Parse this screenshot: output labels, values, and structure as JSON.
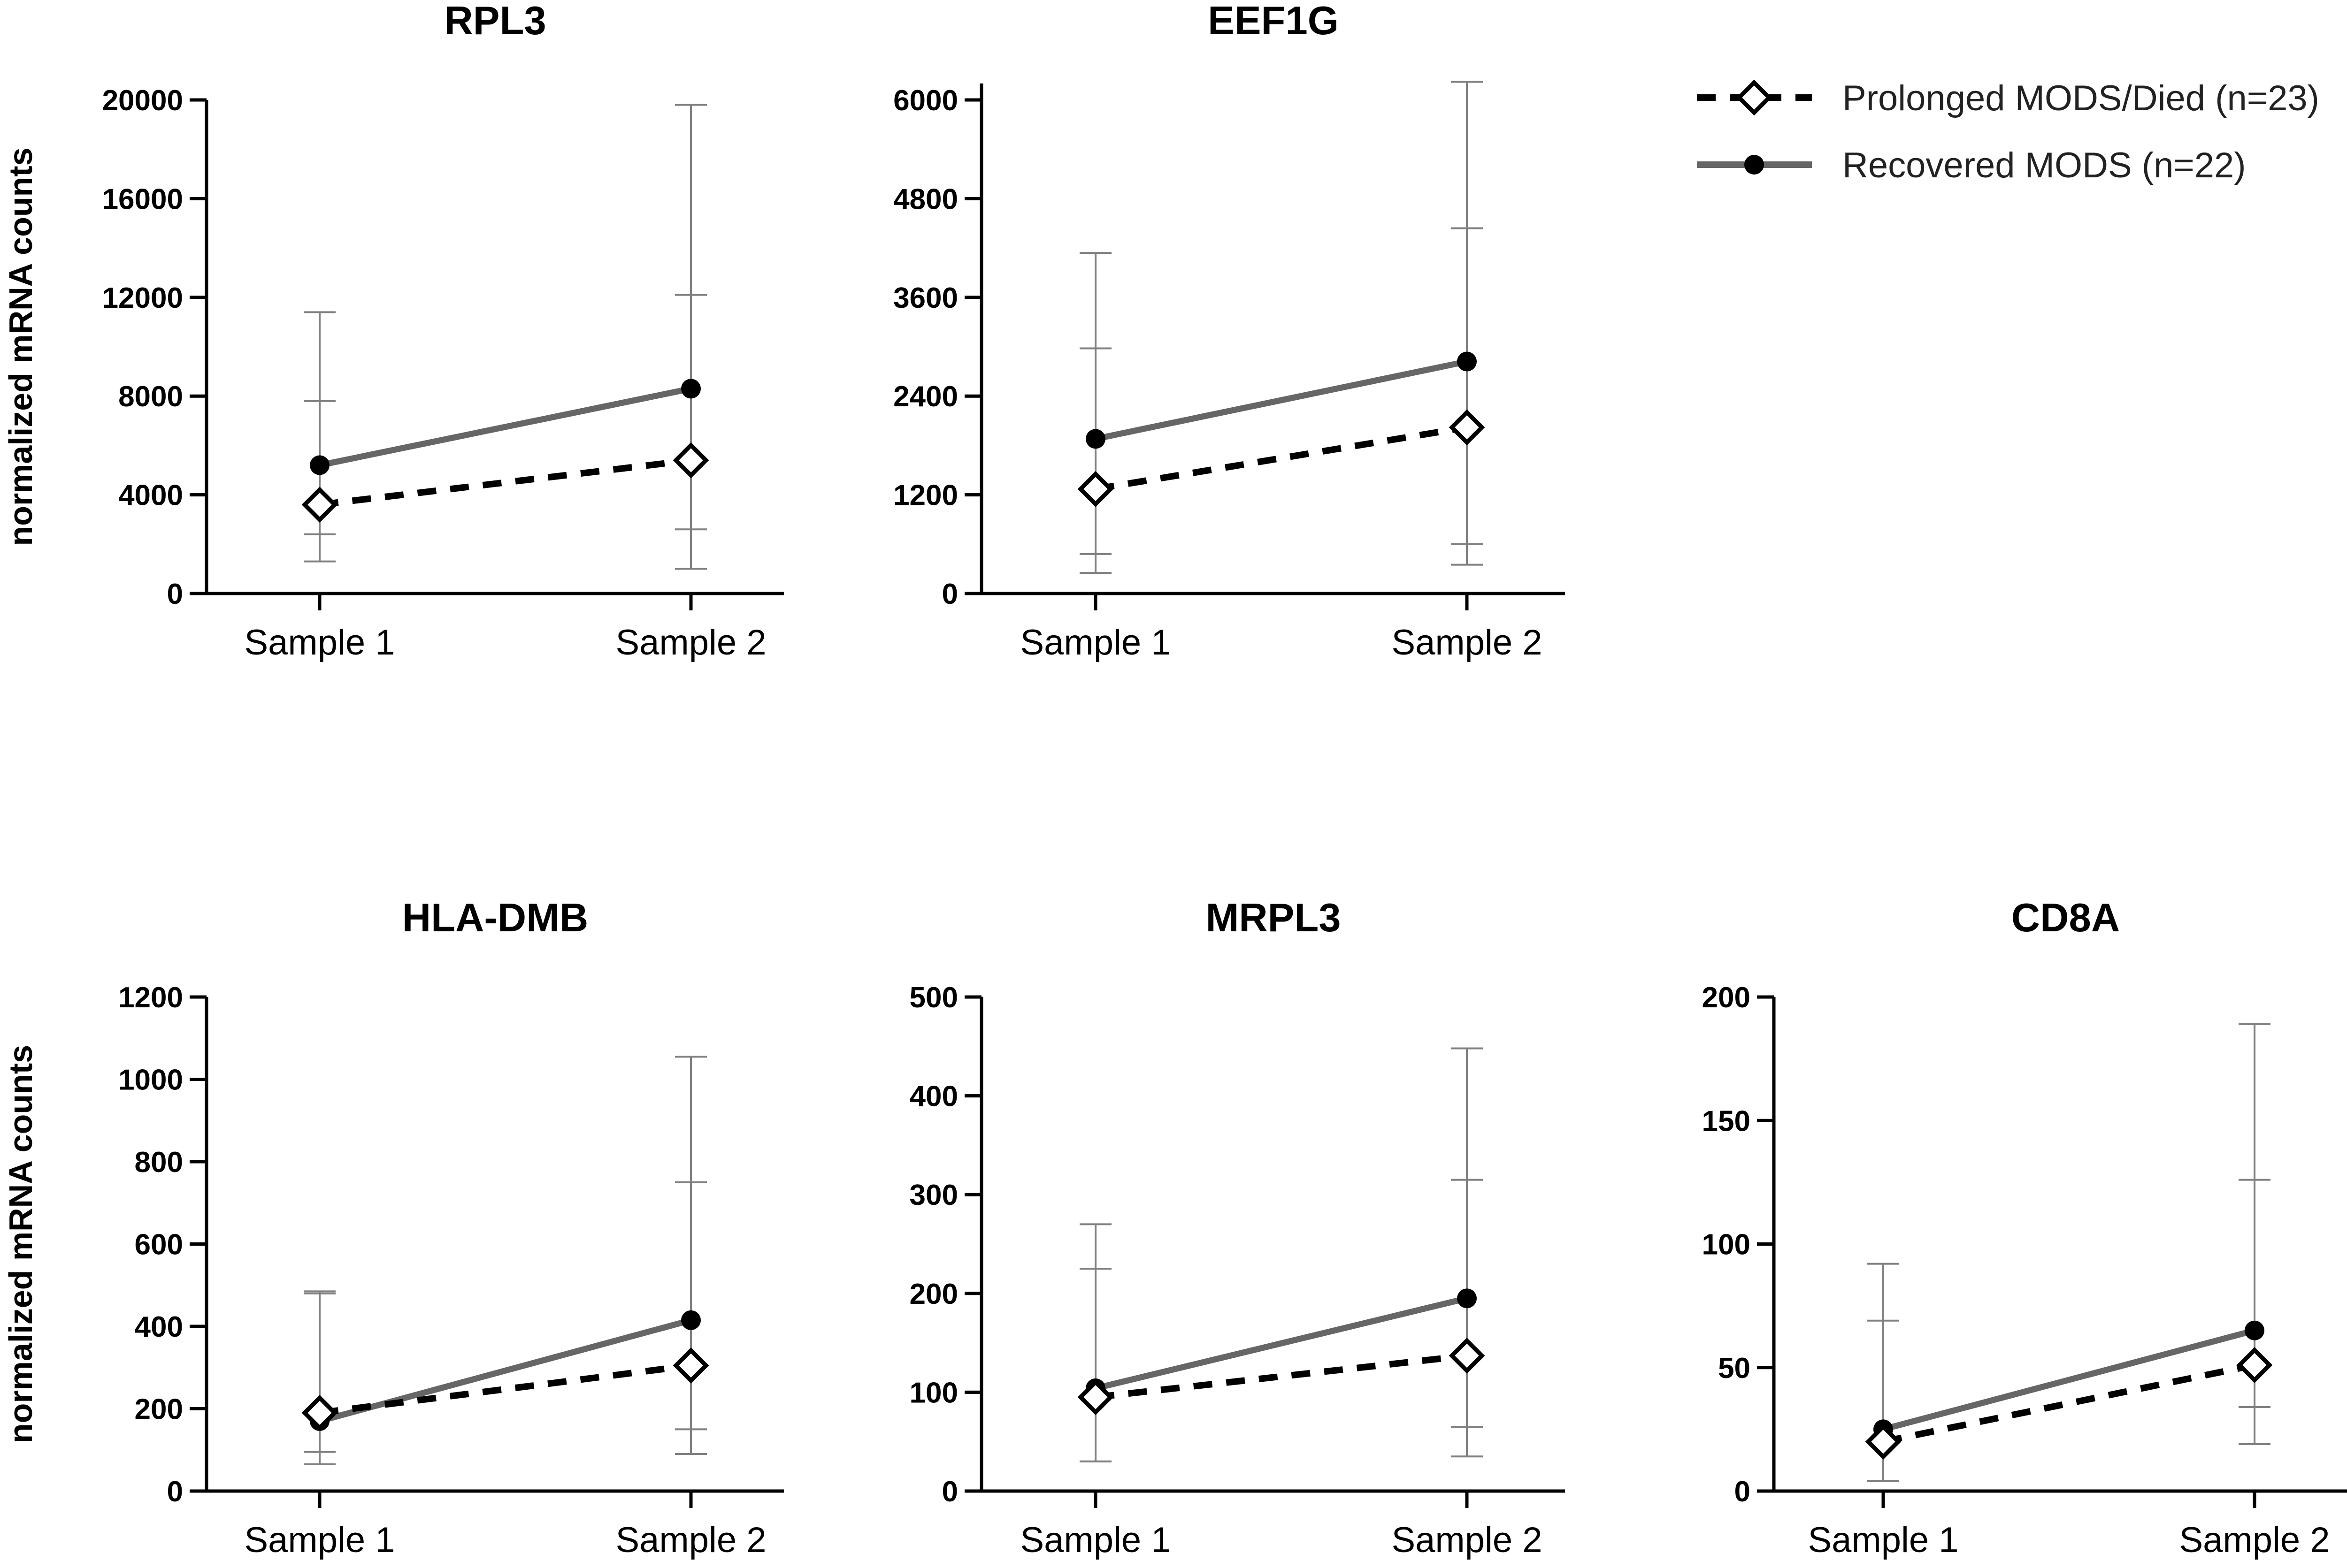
{
  "legend": {
    "items": [
      {
        "label": "Prolonged MODS/Died (n=23)",
        "marker": "diamond-open",
        "line": "dashed",
        "color": "#000000"
      },
      {
        "label": "Recovered MODS (n=22)",
        "marker": "circle-filled",
        "line": "solid",
        "color": "#666666"
      }
    ]
  },
  "colors": {
    "prolonged": "#000000",
    "recovered": "#666666",
    "errorbar": "#808080",
    "axis": "#000000"
  },
  "chart_data": [
    {
      "type": "line",
      "title": "RPL3",
      "ylabel": "normalized mRNA counts",
      "categories": [
        "Sample 1",
        "Sample 2"
      ],
      "ylim": [
        0,
        20000
      ],
      "yticks": [
        0,
        4000,
        8000,
        12000,
        16000,
        20000
      ],
      "series": [
        {
          "name": "Prolonged MODS/Died (n=23)",
          "values": [
            3600,
            5400
          ],
          "err_low": [
            1300,
            1000
          ],
          "err_high": [
            7800,
            12100
          ]
        },
        {
          "name": "Recovered MODS (n=22)",
          "values": [
            5200,
            8300
          ],
          "err_low": [
            2400,
            2600
          ],
          "err_high": [
            11400,
            19800
          ]
        }
      ]
    },
    {
      "type": "line",
      "title": "EEF1G",
      "ylabel": "",
      "categories": [
        "Sample 1",
        "Sample 2"
      ],
      "ylim": [
        0,
        6200
      ],
      "yticks": [
        0,
        1200,
        2400,
        3600,
        4800,
        6000
      ],
      "series": [
        {
          "name": "Prolonged MODS/Died (n=23)",
          "values": [
            1270,
            2020
          ],
          "err_low": [
            250,
            350
          ],
          "err_high": [
            2980,
            4440
          ]
        },
        {
          "name": "Recovered MODS (n=22)",
          "values": [
            1880,
            2820
          ],
          "err_low": [
            480,
            600
          ],
          "err_high": [
            4140,
            6220
          ]
        }
      ]
    },
    {
      "type": "line",
      "title": "HLA-DMB",
      "ylabel": "normalized mRNA counts",
      "categories": [
        "Sample 1",
        "Sample 2"
      ],
      "ylim": [
        0,
        1200
      ],
      "yticks": [
        0,
        200,
        400,
        600,
        800,
        1000,
        1200
      ],
      "series": [
        {
          "name": "Prolonged MODS/Died (n=23)",
          "values": [
            190,
            305
          ],
          "err_low": [
            95,
            90
          ],
          "err_high": [
            480,
            750
          ]
        },
        {
          "name": "Recovered MODS (n=22)",
          "values": [
            170,
            415
          ],
          "err_low": [
            65,
            150
          ],
          "err_high": [
            485,
            1055
          ]
        }
      ]
    },
    {
      "type": "line",
      "title": "MRPL3",
      "ylabel": "",
      "categories": [
        "Sample 1",
        "Sample 2"
      ],
      "ylim": [
        0,
        500
      ],
      "yticks": [
        0,
        100,
        200,
        300,
        400,
        500
      ],
      "series": [
        {
          "name": "Prolonged MODS/Died (n=23)",
          "values": [
            95,
            137
          ],
          "err_low": [
            30,
            35
          ],
          "err_high": [
            225,
            315
          ]
        },
        {
          "name": "Recovered MODS (n=22)",
          "values": [
            104,
            195
          ],
          "err_low": [
            30,
            65
          ],
          "err_high": [
            270,
            448
          ]
        }
      ]
    },
    {
      "type": "line",
      "title": "CD8A",
      "ylabel": "",
      "categories": [
        "Sample 1",
        "Sample 2"
      ],
      "ylim": [
        0,
        200
      ],
      "yticks": [
        0,
        50,
        100,
        150,
        200
      ],
      "series": [
        {
          "name": "Prolonged MODS/Died (n=23)",
          "values": [
            20,
            51
          ],
          "err_low": [
            4,
            19
          ],
          "err_high": [
            69,
            126
          ]
        },
        {
          "name": "Recovered MODS (n=22)",
          "values": [
            25,
            65
          ],
          "err_low": [
            4,
            34
          ],
          "err_high": [
            92,
            189
          ]
        }
      ]
    }
  ]
}
